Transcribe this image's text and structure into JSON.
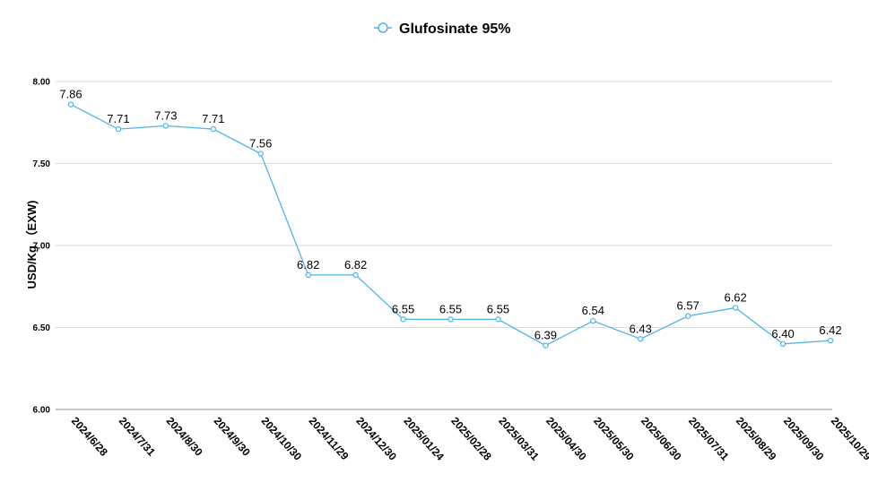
{
  "chart_data": {
    "type": "line",
    "title": "",
    "xlabel": "",
    "ylabel": "USD/Kg （EXW)",
    "ylim": [
      6.0,
      8.0
    ],
    "yticks": [
      "6.00",
      "6.50",
      "7.00",
      "7.50",
      "8.00"
    ],
    "grid": true,
    "legend_position": "top-center",
    "categories": [
      "2024/6/28",
      "2024/7/31",
      "2024/8/30",
      "2024/9/30",
      "2024/10/30",
      "2024/11/29",
      "2024/12/30",
      "2025/01/24",
      "2025/02/28",
      "2025/03/31",
      "2025/04/30",
      "2025/05/30",
      "2025/06/30",
      "2025/07/31",
      "2025/08/29",
      "2025/09/30",
      "2025/10/29"
    ],
    "series": [
      {
        "name": "Glufosinate 95%",
        "color": "#4fb3ea",
        "values": [
          7.86,
          7.71,
          7.73,
          7.71,
          7.56,
          6.82,
          6.82,
          6.55,
          6.55,
          6.55,
          6.39,
          6.54,
          6.43,
          6.57,
          6.62,
          6.4,
          6.42
        ],
        "labels": [
          "7.86",
          "7.71",
          "7.73",
          "7.71",
          "7.56",
          "6.82",
          "6.82",
          "6.55",
          "6.55",
          "6.55",
          "6.39",
          "6.54",
          "6.43",
          "6.57",
          "6.62",
          "6.40",
          "6.42"
        ]
      }
    ]
  }
}
